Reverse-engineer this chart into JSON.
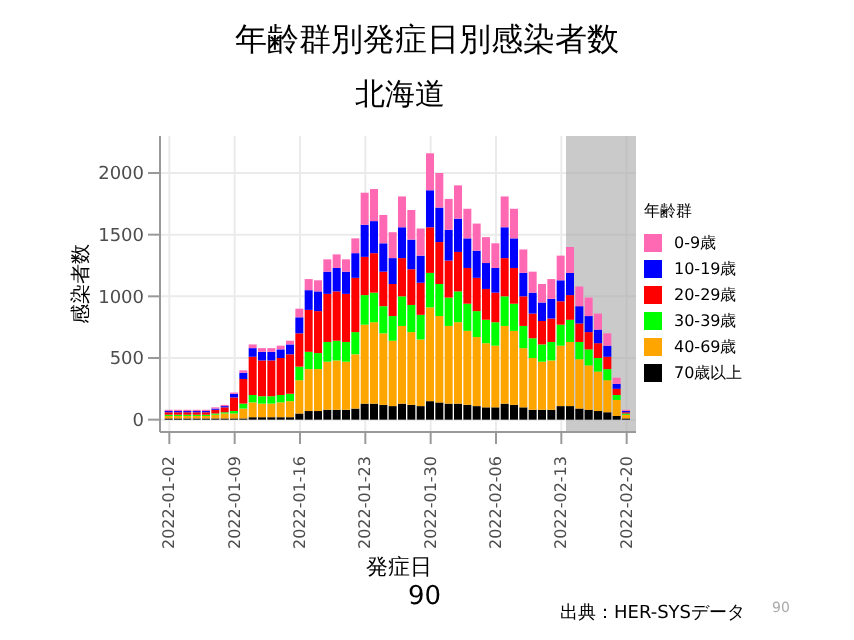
{
  "chart_data": {
    "type": "bar",
    "title": "年齢群別発症日別感染者数",
    "subtitle": "北海道",
    "xlabel": "発症日",
    "ylabel": "感染者数",
    "legend_title": "年齢群",
    "stacked": true,
    "grid": true,
    "legend": "right",
    "annotations": [
      "90",
      "出典：HER-SYSデータ",
      "90"
    ],
    "x": [
      "2022-01-02",
      "2022-01-03",
      "2022-01-04",
      "2022-01-05",
      "2022-01-06",
      "2022-01-07",
      "2022-01-08",
      "2022-01-09",
      "2022-01-10",
      "2022-01-11",
      "2022-01-12",
      "2022-01-13",
      "2022-01-14",
      "2022-01-15",
      "2022-01-16",
      "2022-01-17",
      "2022-01-18",
      "2022-01-19",
      "2022-01-20",
      "2022-01-21",
      "2022-01-22",
      "2022-01-23",
      "2022-01-24",
      "2022-01-25",
      "2022-01-26",
      "2022-01-27",
      "2022-01-28",
      "2022-01-29",
      "2022-01-30",
      "2022-01-31",
      "2022-02-01",
      "2022-02-02",
      "2022-02-03",
      "2022-02-04",
      "2022-02-05",
      "2022-02-06",
      "2022-02-07",
      "2022-02-08",
      "2022-02-09",
      "2022-02-10",
      "2022-02-11",
      "2022-02-12",
      "2022-02-13",
      "2022-02-14",
      "2022-02-15",
      "2022-02-16",
      "2022-02-17",
      "2022-02-18",
      "2022-02-19",
      "2022-02-20"
    ],
    "xlim": [
      "2022-01-01",
      "2022-02-21"
    ],
    "xticks": [
      "2022-01-02",
      "2022-01-09",
      "2022-01-16",
      "2022-01-23",
      "2022-01-30",
      "2022-02-06",
      "2022-02-13",
      "2022-02-20"
    ],
    "ylim": [
      -100,
      2300
    ],
    "yticks": [
      0,
      500,
      1000,
      1500,
      2000
    ],
    "bands": [
      {
        "axis": "x",
        "from": "2022-02-13T12:00",
        "to": "2022-02-21",
        "color": "#a6a6a6"
      }
    ],
    "series": [
      {
        "name": "70歳以上",
        "color": "#000000",
        "values": [
          10,
          10,
          10,
          10,
          10,
          10,
          10,
          10,
          10,
          20,
          20,
          20,
          20,
          20,
          50,
          70,
          70,
          80,
          80,
          80,
          90,
          130,
          130,
          120,
          110,
          130,
          120,
          110,
          150,
          140,
          130,
          130,
          120,
          110,
          100,
          100,
          130,
          120,
          100,
          80,
          80,
          80,
          110,
          110,
          90,
          80,
          70,
          60,
          30,
          10
        ]
      },
      {
        "name": "40-69歳",
        "color": "#ffa500",
        "values": [
          20,
          20,
          20,
          20,
          20,
          30,
          40,
          40,
          80,
          120,
          110,
          110,
          120,
          130,
          270,
          340,
          340,
          390,
          400,
          390,
          440,
          640,
          660,
          580,
          530,
          630,
          590,
          540,
          760,
          700,
          630,
          660,
          600,
          560,
          520,
          500,
          630,
          600,
          480,
          420,
          390,
          400,
          490,
          520,
          400,
          360,
          320,
          260,
          130,
          30
        ]
      },
      {
        "name": "30-39歳",
        "color": "#00ff00",
        "values": [
          10,
          10,
          10,
          10,
          10,
          10,
          10,
          20,
          40,
          60,
          60,
          60,
          60,
          60,
          110,
          140,
          130,
          160,
          160,
          160,
          180,
          240,
          240,
          220,
          200,
          240,
          220,
          200,
          280,
          260,
          230,
          250,
          220,
          210,
          190,
          190,
          240,
          220,
          180,
          160,
          140,
          150,
          170,
          180,
          140,
          130,
          110,
          90,
          40,
          10
        ]
      },
      {
        "name": "20-29歳",
        "color": "#ff0000",
        "values": [
          20,
          20,
          20,
          20,
          20,
          30,
          40,
          110,
          200,
          310,
          290,
          290,
          300,
          320,
          270,
          340,
          340,
          390,
          400,
          390,
          440,
          310,
          320,
          280,
          260,
          310,
          290,
          260,
          370,
          340,
          300,
          320,
          290,
          270,
          250,
          240,
          310,
          290,
          240,
          200,
          190,
          190,
          190,
          200,
          150,
          140,
          120,
          100,
          50,
          10
        ]
      },
      {
        "name": "10-19歳",
        "color": "#0000ff",
        "values": [
          10,
          10,
          10,
          10,
          10,
          10,
          10,
          30,
          50,
          70,
          70,
          70,
          70,
          80,
          130,
          160,
          160,
          180,
          190,
          180,
          200,
          260,
          260,
          230,
          210,
          250,
          240,
          220,
          300,
          280,
          250,
          270,
          240,
          220,
          210,
          200,
          250,
          240,
          190,
          170,
          150,
          160,
          170,
          180,
          140,
          130,
          110,
          90,
          40,
          10
        ]
      },
      {
        "name": "0-9歳",
        "color": "#ff69b4",
        "values": [
          10,
          10,
          10,
          10,
          10,
          10,
          10,
          10,
          20,
          30,
          30,
          30,
          30,
          30,
          70,
          90,
          90,
          100,
          110,
          100,
          120,
          260,
          260,
          230,
          210,
          250,
          240,
          220,
          300,
          280,
          250,
          270,
          240,
          220,
          210,
          200,
          250,
          240,
          190,
          170,
          150,
          160,
          200,
          210,
          160,
          150,
          130,
          100,
          50,
          10
        ]
      }
    ]
  }
}
